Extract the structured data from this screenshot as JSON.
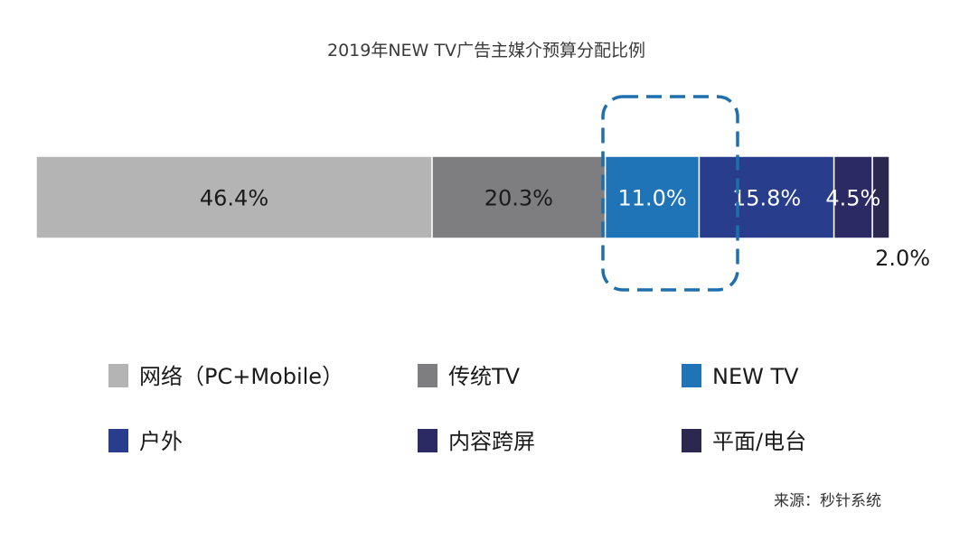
{
  "chart_data": {
    "type": "bar",
    "stacked": true,
    "orientation": "horizontal",
    "title": "2019年NEW TV广告主媒介预算分配比例",
    "series": [
      {
        "name": "网络（PC+Mobile）",
        "value": 46.4,
        "label": "46.4%",
        "color": "#b4b4b4",
        "label_color": "#1a1a1a"
      },
      {
        "name": "传统TV",
        "value": 20.3,
        "label": "20.3%",
        "color": "#7e7e80",
        "label_color": "#1a1a1a"
      },
      {
        "name": "NEW TV",
        "value": 11.0,
        "label": "11.0%",
        "color": "#1f73b7",
        "label_color": "#ffffff"
      },
      {
        "name": "户外",
        "value": 15.8,
        "label": "15.8%",
        "color": "#283d8c",
        "label_color": "#ffffff"
      },
      {
        "name": "内容跨屏",
        "value": 4.5,
        "label": "4.5%",
        "color": "#2c2a65",
        "label_color": "#ffffff"
      },
      {
        "name": "平面/电台",
        "value": 2.0,
        "label": "2.0%",
        "color": "#2b2850",
        "label_color": "#1a1a1a"
      }
    ],
    "highlight": "NEW TV",
    "legend_position": "bottom",
    "source": "来源：秒针系统"
  }
}
